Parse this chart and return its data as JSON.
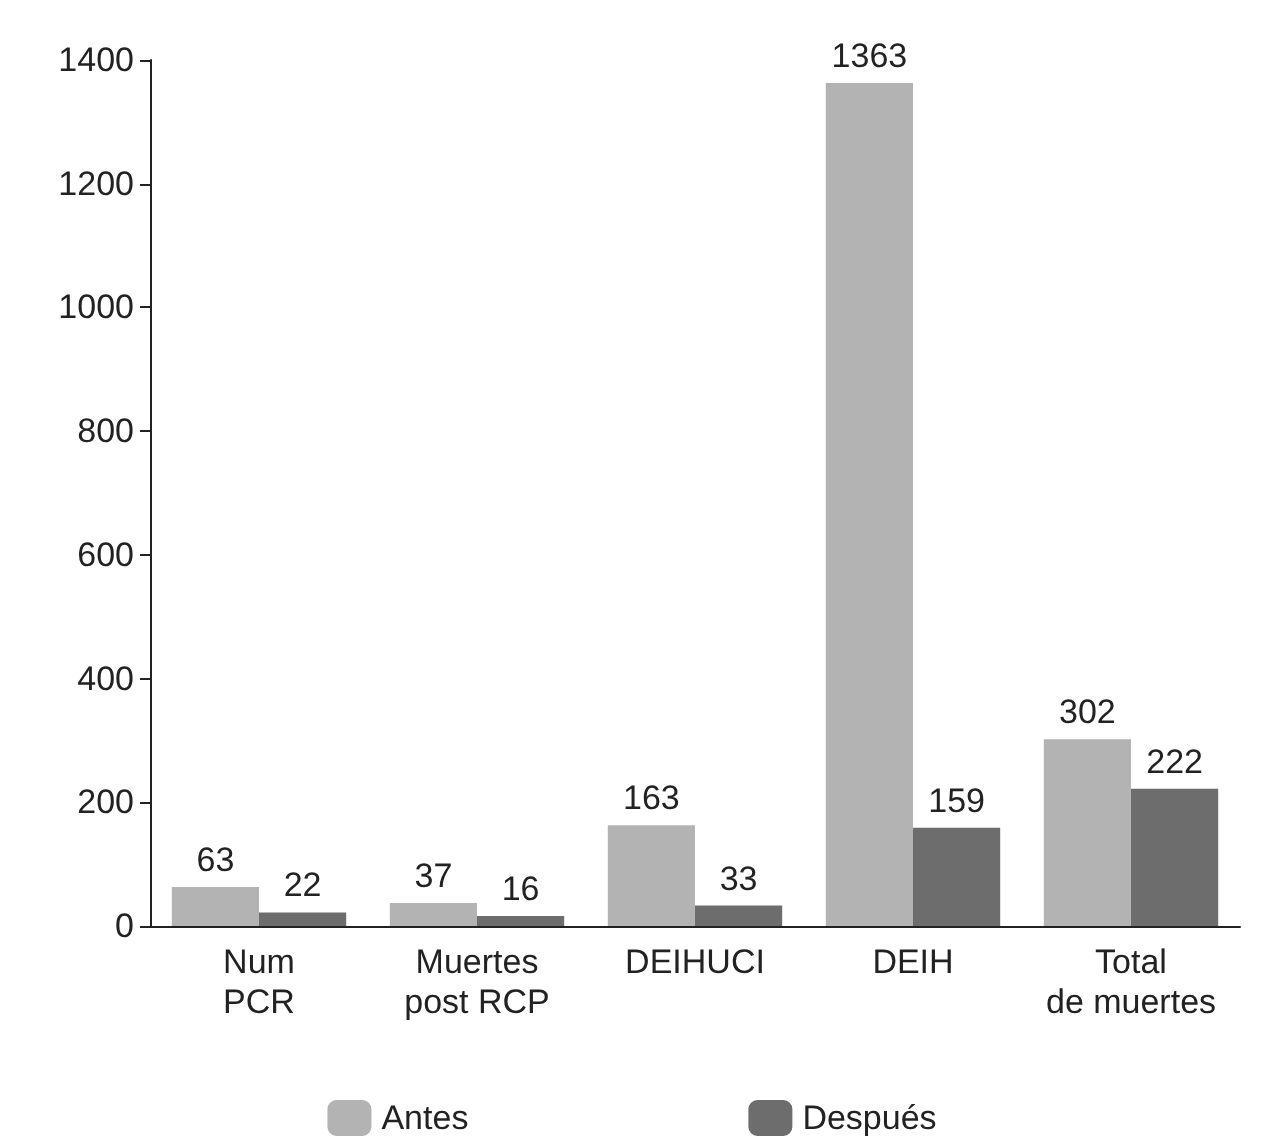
{
  "chart_data": {
    "type": "bar",
    "categories": [
      "Num\nPCR",
      "Muertes\npost RCP",
      "DEIHUCI",
      "DEIH",
      "Total\nde muertes"
    ],
    "series": [
      {
        "name": "Antes",
        "color": "#b3b3b3",
        "values": [
          63,
          37,
          163,
          1363,
          302
        ]
      },
      {
        "name": "Después",
        "color": "#6d6d6d",
        "values": [
          22,
          16,
          33,
          159,
          222
        ]
      }
    ],
    "ylim": [
      0,
      1400
    ],
    "yticks": [
      0,
      200,
      400,
      600,
      800,
      1000,
      1200,
      1400
    ],
    "grid": false,
    "legend": "bottom",
    "data_labels": true
  }
}
